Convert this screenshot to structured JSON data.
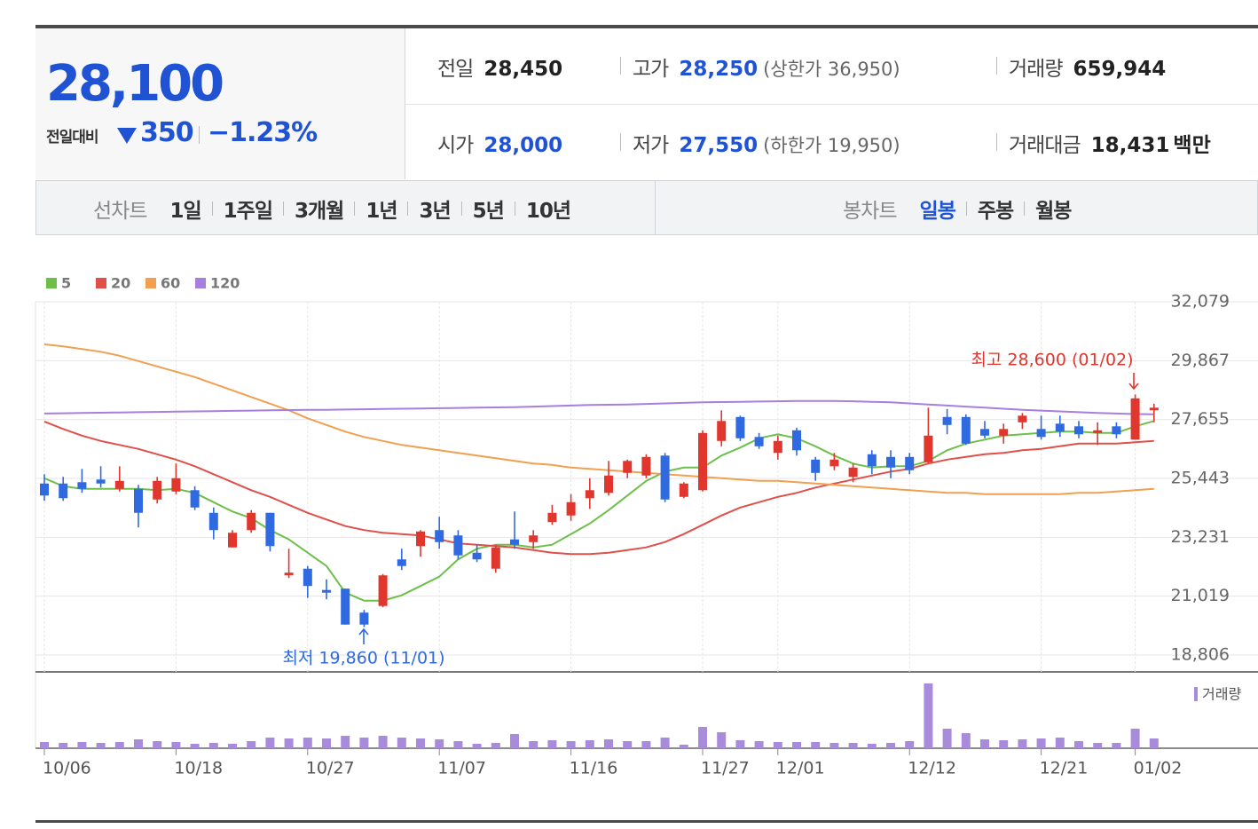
{
  "quote": {
    "price": "28,100",
    "change_label": "전일대비",
    "change": "350",
    "change_rate": "−1.23%",
    "items": [
      {
        "label": "전일",
        "value": "28,450"
      },
      {
        "label": "고가",
        "value": "28,250",
        "limit": "(상한가 36,950)"
      },
      {
        "label": "거래량",
        "value": "659,944"
      },
      {
        "label": "시가",
        "value": "28,000"
      },
      {
        "label": "저가",
        "value": "27,550",
        "limit": "(하한가 19,950)"
      },
      {
        "label": "거래대금",
        "value": "18,431",
        "unit": "백만"
      }
    ]
  },
  "tabs": {
    "line_chart": {
      "label": "선차트",
      "periods": [
        "1일",
        "1주일",
        "3개월",
        "1년",
        "3년",
        "5년",
        "10년"
      ]
    },
    "candle_chart": {
      "label": "봉차트",
      "periods": [
        "일봉",
        "주봉",
        "월봉"
      ],
      "selected": 0
    }
  },
  "chart_data": {
    "type": "candlestick",
    "categories": [
      "10/06",
      null,
      null,
      null,
      null,
      null,
      null,
      "10/18",
      null,
      null,
      null,
      null,
      null,
      null,
      "10/27",
      null,
      null,
      null,
      null,
      null,
      null,
      "11/07",
      null,
      null,
      null,
      null,
      null,
      null,
      "11/16",
      null,
      null,
      null,
      null,
      null,
      null,
      "11/27",
      null,
      null,
      null,
      "12/01",
      null,
      null,
      null,
      null,
      null,
      null,
      "12/12",
      null,
      null,
      null,
      null,
      null,
      null,
      "12/21",
      null,
      null,
      null,
      null,
      "01/02",
      null
    ],
    "candles": {
      "up_color": "#e0362e",
      "down_color": "#2f6ae0",
      "open": [
        25250,
        25250,
        25300,
        25400,
        25050,
        25050,
        24650,
        24950,
        25000,
        24150,
        22850,
        23500,
        24150,
        21800,
        22050,
        21250,
        21300,
        20400,
        20650,
        22400,
        22900,
        23500,
        23300,
        22650,
        22050,
        23150,
        23050,
        23800,
        24050,
        24700,
        24900,
        25650,
        25550,
        26300,
        24750,
        25000,
        26850,
        27750,
        27000,
        26400,
        27250,
        26150,
        25900,
        25500,
        26350,
        26250,
        26250,
        26050,
        27750,
        27750,
        27300,
        27050,
        27550,
        27300,
        27500,
        27400,
        27150,
        27400,
        26900,
        28000
      ],
      "high": [
        25600,
        25500,
        25800,
        25900,
        25900,
        25200,
        25500,
        26000,
        25150,
        24350,
        23500,
        24250,
        24150,
        22800,
        22150,
        21650,
        21300,
        20500,
        21850,
        22800,
        23500,
        24000,
        23500,
        22950,
        22950,
        24200,
        23500,
        24450,
        24850,
        25450,
        26100,
        26150,
        26350,
        26400,
        25300,
        27250,
        28000,
        27800,
        27150,
        27050,
        27350,
        26250,
        26400,
        26000,
        26500,
        26500,
        26400,
        28100,
        28050,
        27850,
        27600,
        27500,
        27900,
        27800,
        27800,
        27600,
        27550,
        27550,
        28600,
        28250
      ],
      "low": [
        24600,
        24600,
        24900,
        25100,
        24950,
        23600,
        24500,
        24850,
        24250,
        23150,
        22850,
        23400,
        22700,
        21700,
        20950,
        20900,
        19950,
        19860,
        20600,
        22000,
        22500,
        22800,
        22400,
        22300,
        21900,
        22800,
        22800,
        23700,
        23850,
        24300,
        24800,
        25450,
        25450,
        24550,
        24700,
        24950,
        26650,
        26850,
        26550,
        26150,
        26300,
        25350,
        25750,
        25300,
        25600,
        25450,
        25600,
        26000,
        27100,
        26700,
        26950,
        26750,
        27300,
        26900,
        27000,
        26950,
        26700,
        26950,
        26900,
        27550
      ],
      "close": [
        24800,
        24700,
        25050,
        25250,
        25350,
        24150,
        25350,
        25450,
        24350,
        23500,
        23400,
        24150,
        22900,
        21900,
        21400,
        21150,
        19950,
        19950,
        21800,
        22150,
        23450,
        23050,
        22550,
        22400,
        22850,
        22950,
        23300,
        24150,
        24550,
        25000,
        25550,
        26100,
        26250,
        24650,
        25250,
        27150,
        27600,
        26950,
        26650,
        26850,
        26500,
        25650,
        26150,
        25850,
        25900,
        25850,
        25750,
        27050,
        27450,
        26750,
        27050,
        27300,
        27800,
        27000,
        27200,
        27100,
        27250,
        27100,
        28450,
        28100
      ]
    },
    "moving_averages": [
      {
        "name": "5",
        "color": "#6cc04a",
        "values": [
          25450,
          25150,
          25050,
          25050,
          25050,
          25050,
          25000,
          25050,
          24900,
          24550,
          24200,
          23950,
          23500,
          23150,
          22650,
          22150,
          21150,
          20850,
          20850,
          21050,
          21400,
          21750,
          22400,
          22800,
          22950,
          22950,
          22850,
          22950,
          23350,
          23750,
          24250,
          24800,
          25350,
          25700,
          25850,
          25850,
          26300,
          26600,
          26950,
          27100,
          26950,
          26650,
          26300,
          26000,
          25850,
          25900,
          25900,
          26100,
          26500,
          26750,
          26900,
          27050,
          27100,
          27150,
          27200,
          27200,
          27150,
          27150,
          27400,
          27600
        ]
      },
      {
        "name": "20",
        "color": "#e0504a",
        "values": [
          27580,
          27300,
          27050,
          26850,
          26700,
          26550,
          26350,
          26150,
          25900,
          25600,
          25300,
          25000,
          24750,
          24450,
          24150,
          23900,
          23650,
          23500,
          23400,
          23350,
          23300,
          23150,
          23000,
          22950,
          22900,
          22850,
          22750,
          22650,
          22600,
          22600,
          22650,
          22750,
          22850,
          23050,
          23350,
          23700,
          24050,
          24350,
          24550,
          24750,
          24900,
          25100,
          25250,
          25400,
          25550,
          25700,
          25800,
          26000,
          26150,
          26250,
          26350,
          26400,
          26500,
          26550,
          26650,
          26750,
          26750,
          26750,
          26800,
          26850
        ]
      },
      {
        "name": "60",
        "color": "#f0a050",
        "values": [
          30480,
          30400,
          30300,
          30200,
          30050,
          29850,
          29650,
          29450,
          29250,
          29000,
          28750,
          28500,
          28250,
          28000,
          27700,
          27450,
          27200,
          27000,
          26850,
          26700,
          26600,
          26500,
          26400,
          26300,
          26200,
          26100,
          26000,
          25950,
          25850,
          25800,
          25750,
          25700,
          25650,
          25600,
          25550,
          25500,
          25450,
          25400,
          25350,
          25350,
          25300,
          25250,
          25200,
          25150,
          25100,
          25050,
          25000,
          24950,
          24900,
          24900,
          24850,
          24850,
          24850,
          24850,
          24850,
          24900,
          24900,
          24950,
          25000,
          25050
        ]
      },
      {
        "name": "120",
        "color": "#a77fdc",
        "values": [
          27880,
          27890,
          27900,
          27910,
          27920,
          27930,
          27940,
          27950,
          27960,
          27970,
          27980,
          27990,
          28000,
          28010,
          28020,
          28020,
          28030,
          28040,
          28050,
          28060,
          28070,
          28080,
          28090,
          28100,
          28110,
          28120,
          28140,
          28160,
          28180,
          28200,
          28210,
          28220,
          28240,
          28260,
          28280,
          28300,
          28310,
          28320,
          28330,
          28340,
          28350,
          28350,
          28350,
          28340,
          28320,
          28300,
          28260,
          28220,
          28180,
          28140,
          28100,
          28060,
          28020,
          27990,
          27960,
          27930,
          27900,
          27880,
          27860,
          27850
        ]
      }
    ],
    "volume": {
      "name": "거래량",
      "color": "#a98bdc",
      "ylim": [
        0,
        4500000
      ],
      "values": [
        420000,
        360000,
        420000,
        360000,
        420000,
        600000,
        480000,
        420000,
        300000,
        360000,
        300000,
        480000,
        720000,
        660000,
        720000,
        660000,
        840000,
        720000,
        840000,
        720000,
        660000,
        600000,
        480000,
        300000,
        360000,
        960000,
        480000,
        540000,
        480000,
        540000,
        600000,
        480000,
        480000,
        720000,
        240000,
        1440000,
        1080000,
        540000,
        480000,
        420000,
        420000,
        420000,
        360000,
        360000,
        300000,
        360000,
        480000,
        4380000,
        1320000,
        1020000,
        600000,
        540000,
        600000,
        660000,
        720000,
        480000,
        360000,
        360000,
        1320000,
        659944
      ]
    },
    "ylim": [
      18806,
      32079
    ],
    "yticks": [
      {
        "value": 32079,
        "label": "32,079"
      },
      {
        "value": 29867,
        "label": "29,867"
      },
      {
        "value": 27655,
        "label": "27,655"
      },
      {
        "value": 25443,
        "label": "25,443"
      },
      {
        "value": 23231,
        "label": "23,231"
      },
      {
        "value": 21019,
        "label": "21,019"
      },
      {
        "value": 18806,
        "label": "18,806"
      }
    ],
    "grid": true,
    "annotations": {
      "high": "최고 28,600 (01/02)",
      "low": "최저 19,860 (11/01)"
    }
  }
}
